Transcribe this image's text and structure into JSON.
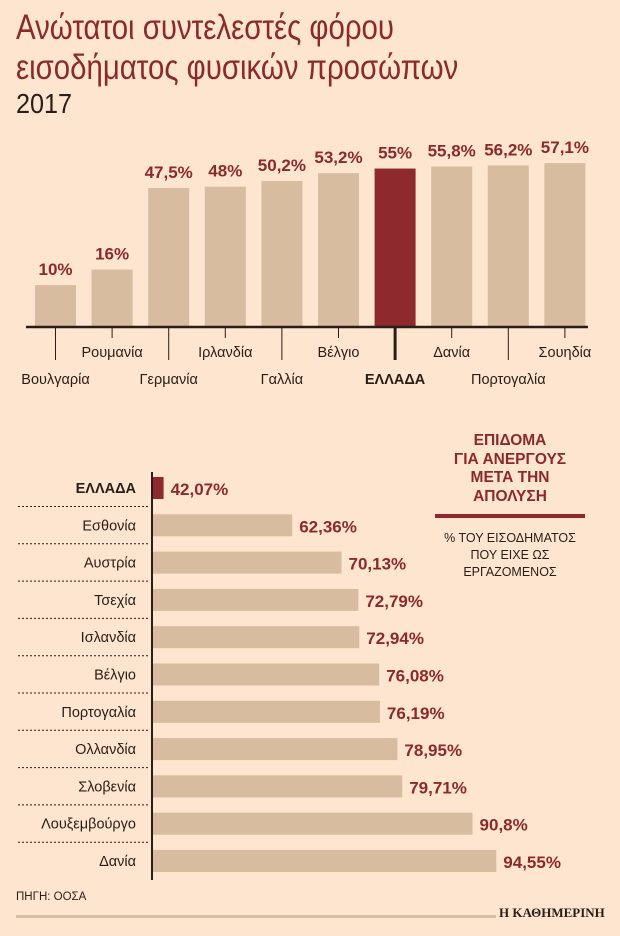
{
  "title": [
    "Ανώτατοι συντελεστές φόρου",
    "εισοδήματος φυσικών προσώπων"
  ],
  "year": "2017",
  "colors": {
    "background": "#fde5cf",
    "bar": "#d8bca0",
    "highlight": "#8e2a2e",
    "label": "#8b2a2c"
  },
  "chart_data": [
    {
      "type": "bar",
      "orientation": "vertical",
      "categories": [
        "Βουλγαρία",
        "Ρουμανία",
        "Γερμανία",
        "Ιρλανδία",
        "Γαλλία",
        "Βέλγιο",
        "ΕΛΛΑΔΑ",
        "Δανία",
        "Πορτογαλία",
        "Σουηδία"
      ],
      "values": [
        10,
        16,
        47.5,
        48,
        50.2,
        53.2,
        55,
        55.8,
        56.2,
        57.1
      ],
      "value_labels": [
        "10%",
        "16%",
        "47,5%",
        "48%",
        "50,2%",
        "53,2%",
        "55%",
        "55,8%",
        "56,2%",
        "57,1%"
      ],
      "highlight": "ΕΛΛΑΔΑ",
      "grid": false
    },
    {
      "type": "bar",
      "orientation": "horizontal",
      "title": [
        "ΕΠΙΔΟΜΑ",
        "ΓΙΑ ΑΝΕΡΓΟΥΣ",
        "ΜΕΤΑ ΤΗΝ",
        "ΑΠΟΛΥΣΗ"
      ],
      "subtitle": [
        "% ΤΟΥ ΕΙΣΟΔΗΜΑΤΟΣ",
        "ΠΟΥ ΕΙΧΕ ΩΣ",
        "ΕΡΓΑΖΟΜΕΝΟΣ"
      ],
      "categories": [
        "ΕΛΛΑΔΑ",
        "Εσθονία",
        "Αυστρία",
        "Τσεχία",
        "Ισλανδία",
        "Βέλγιο",
        "Πορτογαλία",
        "Ολλανδία",
        "Σλοβενία",
        "Λουξεμβούργο",
        "Δανία"
      ],
      "values": [
        42.07,
        62.36,
        70.13,
        72.79,
        72.94,
        76.08,
        76.19,
        78.95,
        79.71,
        90.8,
        94.55
      ],
      "value_labels": [
        "42,07%",
        "62,36%",
        "70,13%",
        "72,79%",
        "72,94%",
        "76,08%",
        "76,19%",
        "78,95%",
        "79,71%",
        "90,8%",
        "94,55%"
      ],
      "highlight": "ΕΛΛΑΔΑ",
      "grid": false
    }
  ],
  "footer": {
    "source": "ΠΗΓΗ: ΟΟΣΑ",
    "brand": "Η ΚΑΘΗΜΕΡΙΝΗ"
  }
}
